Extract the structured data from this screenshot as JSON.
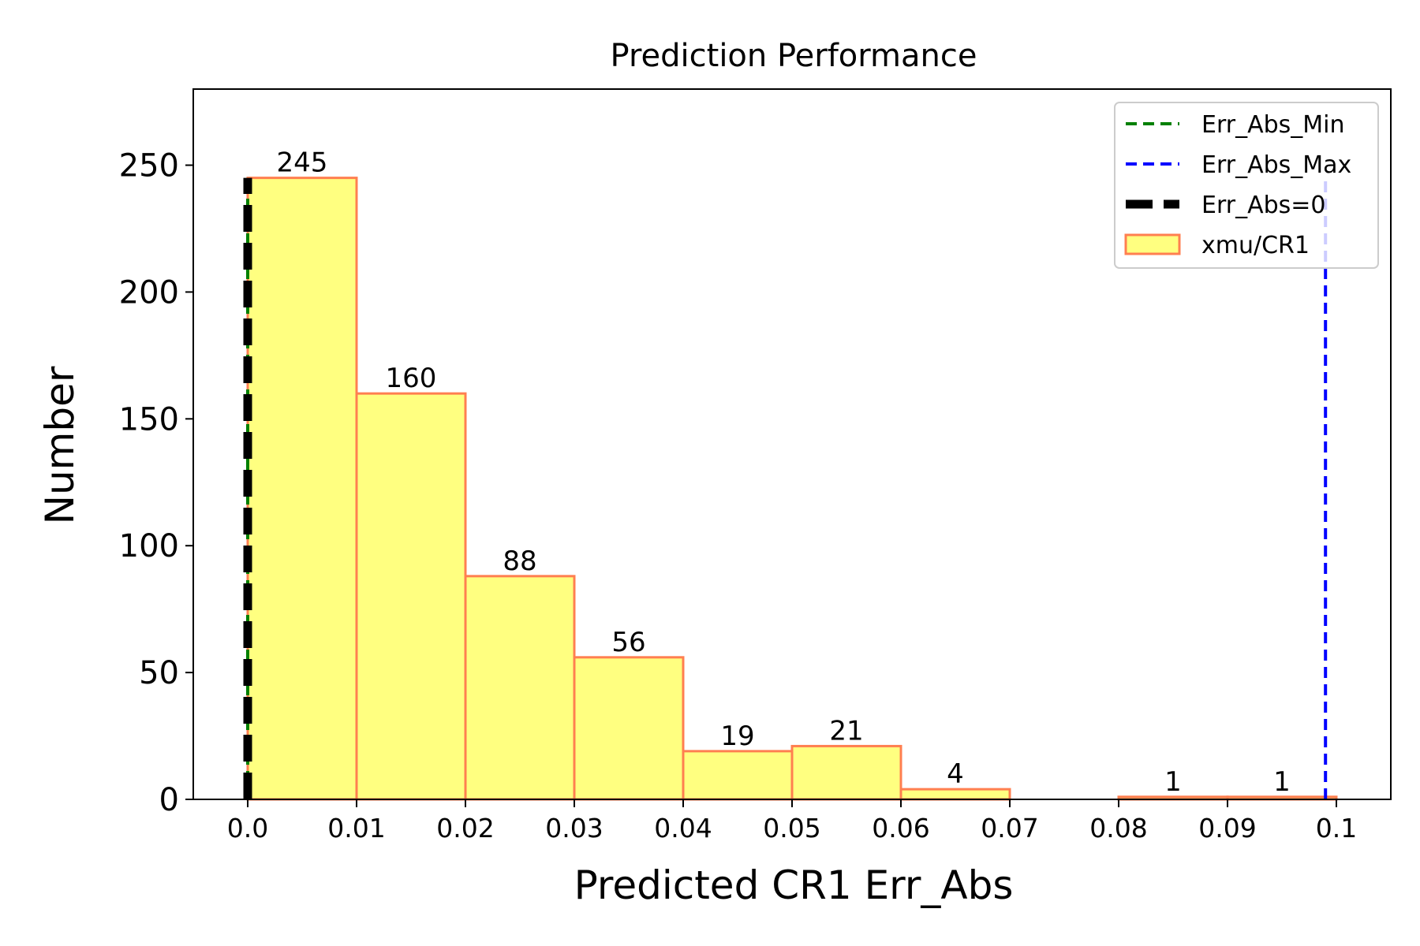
{
  "chart_data": {
    "type": "bar",
    "title": "Prediction Performance",
    "xlabel": "Predicted CR1 Err_Abs",
    "ylabel": "Number",
    "xlim": [
      -0.005,
      0.105
    ],
    "ylim": [
      0,
      280
    ],
    "xticks": [
      0.0,
      0.01,
      0.02,
      0.03,
      0.04,
      0.05,
      0.06,
      0.07,
      0.08,
      0.09,
      0.1
    ],
    "xtick_labels": [
      "0.0",
      "0.01",
      "0.02",
      "0.03",
      "0.04",
      "0.05",
      "0.06",
      "0.07",
      "0.08",
      "0.09",
      "0.1"
    ],
    "yticks": [
      0,
      50,
      100,
      150,
      200,
      250
    ],
    "ytick_labels": [
      "0",
      "50",
      "100",
      "150",
      "200",
      "250"
    ],
    "bin_edges": [
      0.0,
      0.01,
      0.02,
      0.03,
      0.04,
      0.05,
      0.06,
      0.07,
      0.08,
      0.09,
      0.1
    ],
    "values": [
      245,
      160,
      88,
      56,
      19,
      21,
      4,
      0,
      1,
      1
    ],
    "data_labels": [
      "245",
      "160",
      "88",
      "56",
      "19",
      "21",
      "4",
      "",
      "1",
      "1"
    ],
    "bar_color": "#ffff80",
    "bar_edge_color": "#ff7f50",
    "reference_lines": [
      {
        "name": "Err_Abs_Min",
        "x": 0.0,
        "color": "#008000",
        "style": "dashed",
        "ymax": 245
      },
      {
        "name": "Err_Abs_Max",
        "x": 0.099,
        "color": "#0000ff",
        "style": "dashed",
        "ymax": 245
      },
      {
        "name": "Err_Abs=0",
        "x": 0.0,
        "color": "#000000",
        "style": "dashed-thick",
        "ymax": 245
      }
    ],
    "legend": {
      "placement": "top-right",
      "entries": [
        {
          "label": "Err_Abs_Min",
          "kind": "line",
          "color": "#008000"
        },
        {
          "label": "Err_Abs_Max",
          "kind": "line",
          "color": "#0000ff"
        },
        {
          "label": "Err_Abs=0",
          "kind": "thickline",
          "color": "#000000"
        },
        {
          "label": "xmu/CR1",
          "kind": "patch",
          "color": "#ffff80"
        }
      ]
    },
    "grid": false
  }
}
